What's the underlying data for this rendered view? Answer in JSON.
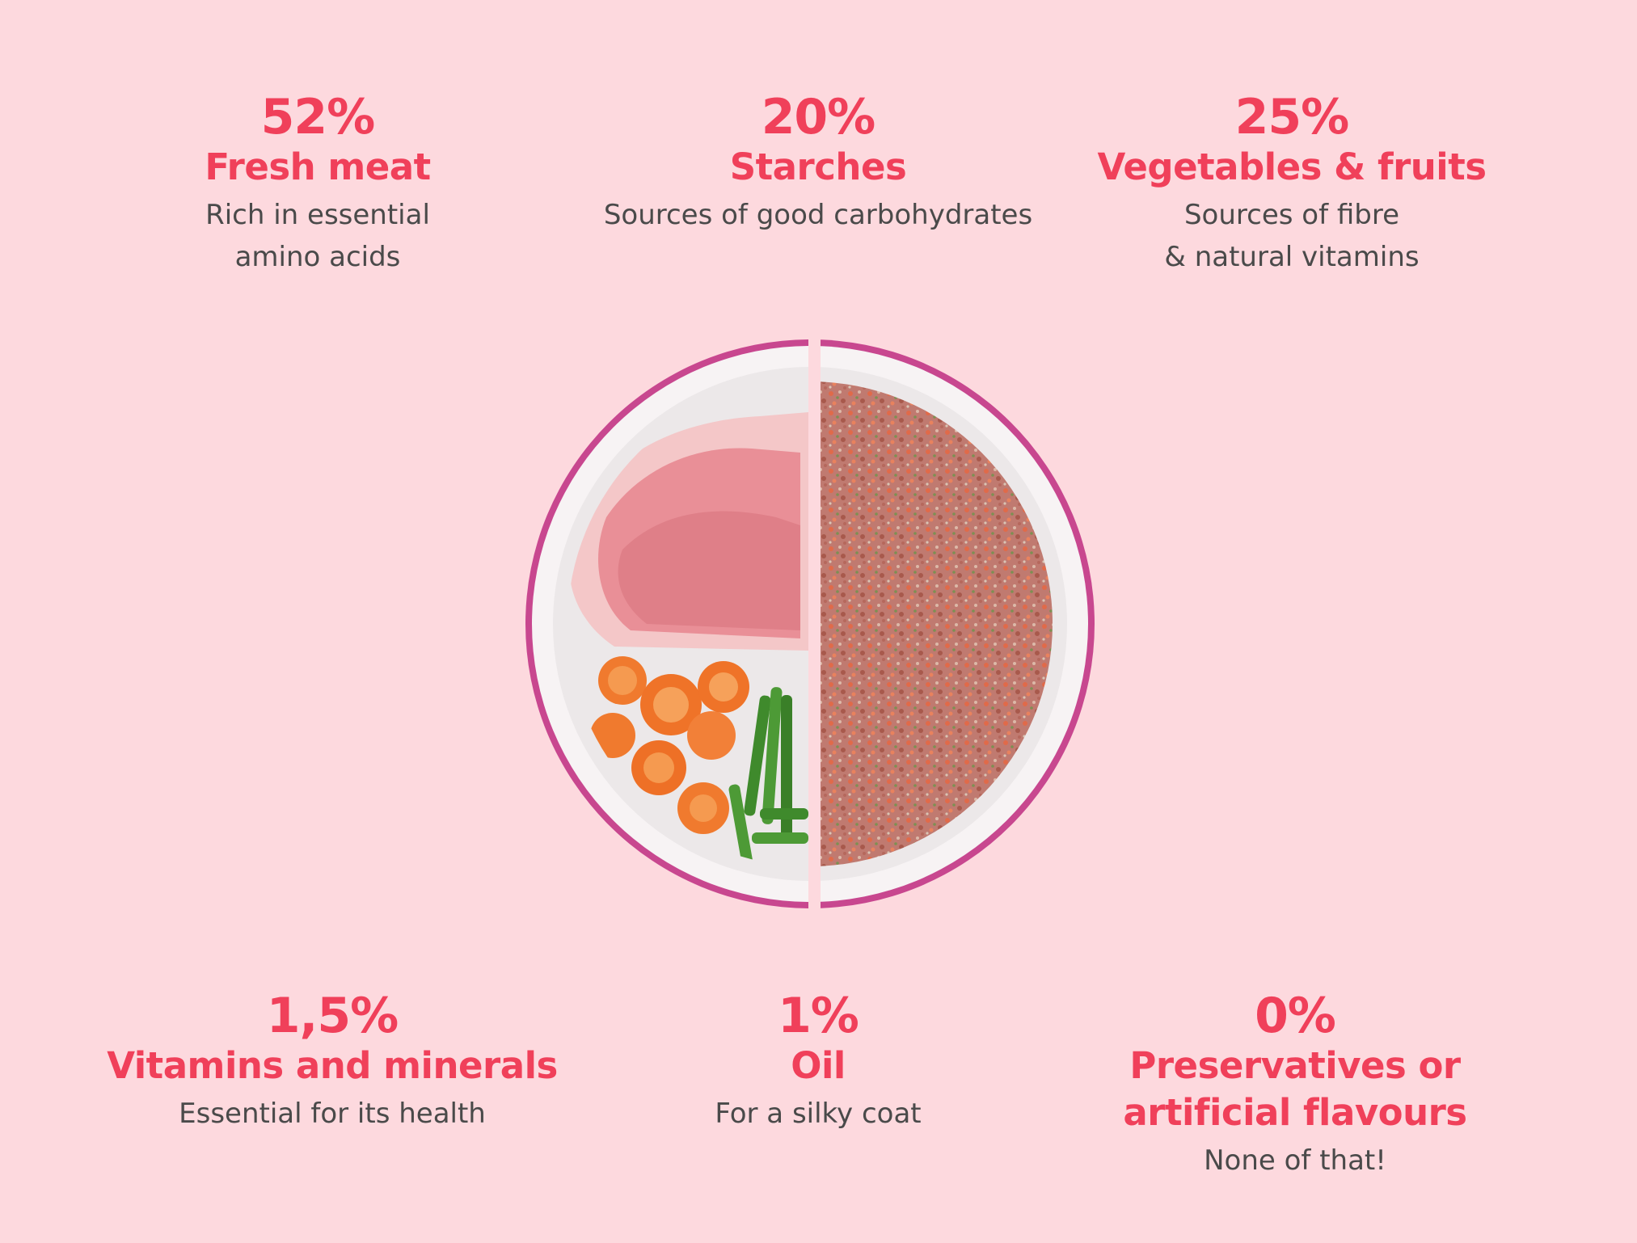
{
  "items": [
    {
      "percent": "52%",
      "title": "Fresh meat",
      "desc": [
        "Rich in essential",
        "amino acids"
      ]
    },
    {
      "percent": "20%",
      "title": "Starches",
      "desc": [
        "Sources of good carbohydrates"
      ]
    },
    {
      "percent": "25%",
      "title": "Vegetables & fruits",
      "desc": [
        "Sources of fibre",
        "& natural vitamins"
      ]
    },
    {
      "percent": "1,5%",
      "title": "Vitamins and minerals",
      "desc": [
        "Essential for its health"
      ]
    },
    {
      "percent": "1%",
      "title": "Oil",
      "desc": [
        "For a silky coat"
      ]
    },
    {
      "percent": "0%",
      "title_lines": [
        "Preservatives or",
        "artificial flavours"
      ],
      "desc": [
        "None of that!"
      ]
    }
  ],
  "colors": {
    "background": "#fdd9de",
    "accent": "#f0405a",
    "text": "#4a4a4a",
    "bowl_rim": "#c8478f"
  },
  "image": {
    "icon": "food-bowl-illustration"
  }
}
